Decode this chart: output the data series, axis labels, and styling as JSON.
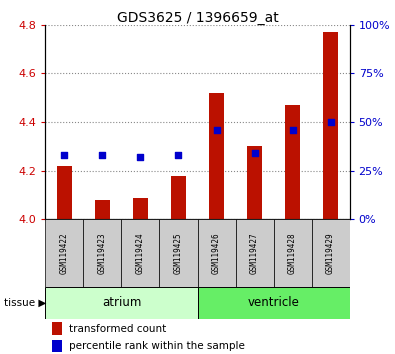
{
  "title": "GDS3625 / 1396659_at",
  "samples": [
    "GSM119422",
    "GSM119423",
    "GSM119424",
    "GSM119425",
    "GSM119426",
    "GSM119427",
    "GSM119428",
    "GSM119429"
  ],
  "transformed_count": [
    4.22,
    4.08,
    4.09,
    4.18,
    4.52,
    4.3,
    4.47,
    4.77
  ],
  "percentile_rank": [
    33,
    33,
    32,
    33,
    46,
    34,
    46,
    50
  ],
  "tissue_groups": [
    {
      "label": "atrium",
      "samples_range": [
        0,
        3
      ],
      "color": "#b3f5b3"
    },
    {
      "label": "ventricle",
      "samples_range": [
        4,
        7
      ],
      "color": "#66dd66"
    }
  ],
  "ylim_left": [
    4.0,
    4.8
  ],
  "ylim_right": [
    0,
    100
  ],
  "yticks_left": [
    4.0,
    4.2,
    4.4,
    4.6,
    4.8
  ],
  "yticks_right": [
    0,
    25,
    50,
    75,
    100
  ],
  "bar_color": "#bb1100",
  "dot_color": "#0000cc",
  "bar_width": 0.4,
  "dot_size": 25,
  "grid_color": "#888888",
  "left_tick_color": "#cc0000",
  "right_tick_color": "#0000cc",
  "legend_bar_label": "transformed count",
  "legend_dot_label": "percentile rank within the sample",
  "sample_box_color": "#cccccc",
  "atrium_color": "#ccffcc",
  "ventricle_color": "#66ee66"
}
